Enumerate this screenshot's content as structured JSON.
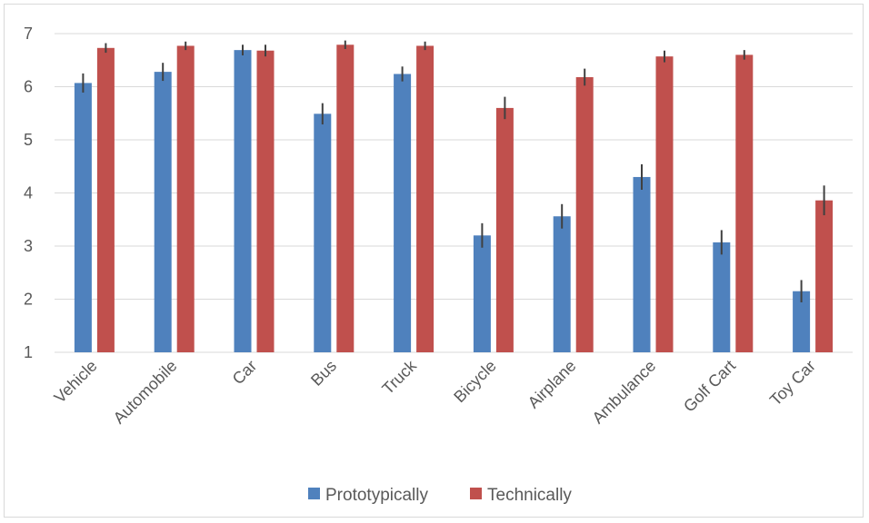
{
  "chart_data": {
    "type": "bar",
    "title": "",
    "xlabel": "",
    "ylabel": "",
    "categories": [
      "Vehicle",
      "Automobile",
      "Car",
      "Bus",
      "Truck",
      "Bicycle",
      "Airplane",
      "Ambulance",
      "Golf Cart",
      "Toy Car"
    ],
    "ylim": [
      1,
      7
    ],
    "yticks": [
      1,
      2,
      3,
      4,
      5,
      6,
      7
    ],
    "grid": true,
    "legend_position": "bottom",
    "series": [
      {
        "name": "Prototypically",
        "color": "#4f81bd",
        "values": [
          6.07,
          6.28,
          6.69,
          5.49,
          6.24,
          3.2,
          3.56,
          4.3,
          3.07,
          2.15
        ],
        "error": [
          0.18,
          0.17,
          0.1,
          0.2,
          0.14,
          0.23,
          0.23,
          0.24,
          0.23,
          0.21
        ]
      },
      {
        "name": "Technically",
        "color": "#c0504d",
        "values": [
          6.73,
          6.77,
          6.68,
          6.79,
          6.77,
          5.6,
          6.18,
          6.57,
          6.6,
          3.86
        ],
        "error": [
          0.09,
          0.08,
          0.11,
          0.08,
          0.08,
          0.21,
          0.16,
          0.11,
          0.09,
          0.28
        ]
      }
    ]
  }
}
